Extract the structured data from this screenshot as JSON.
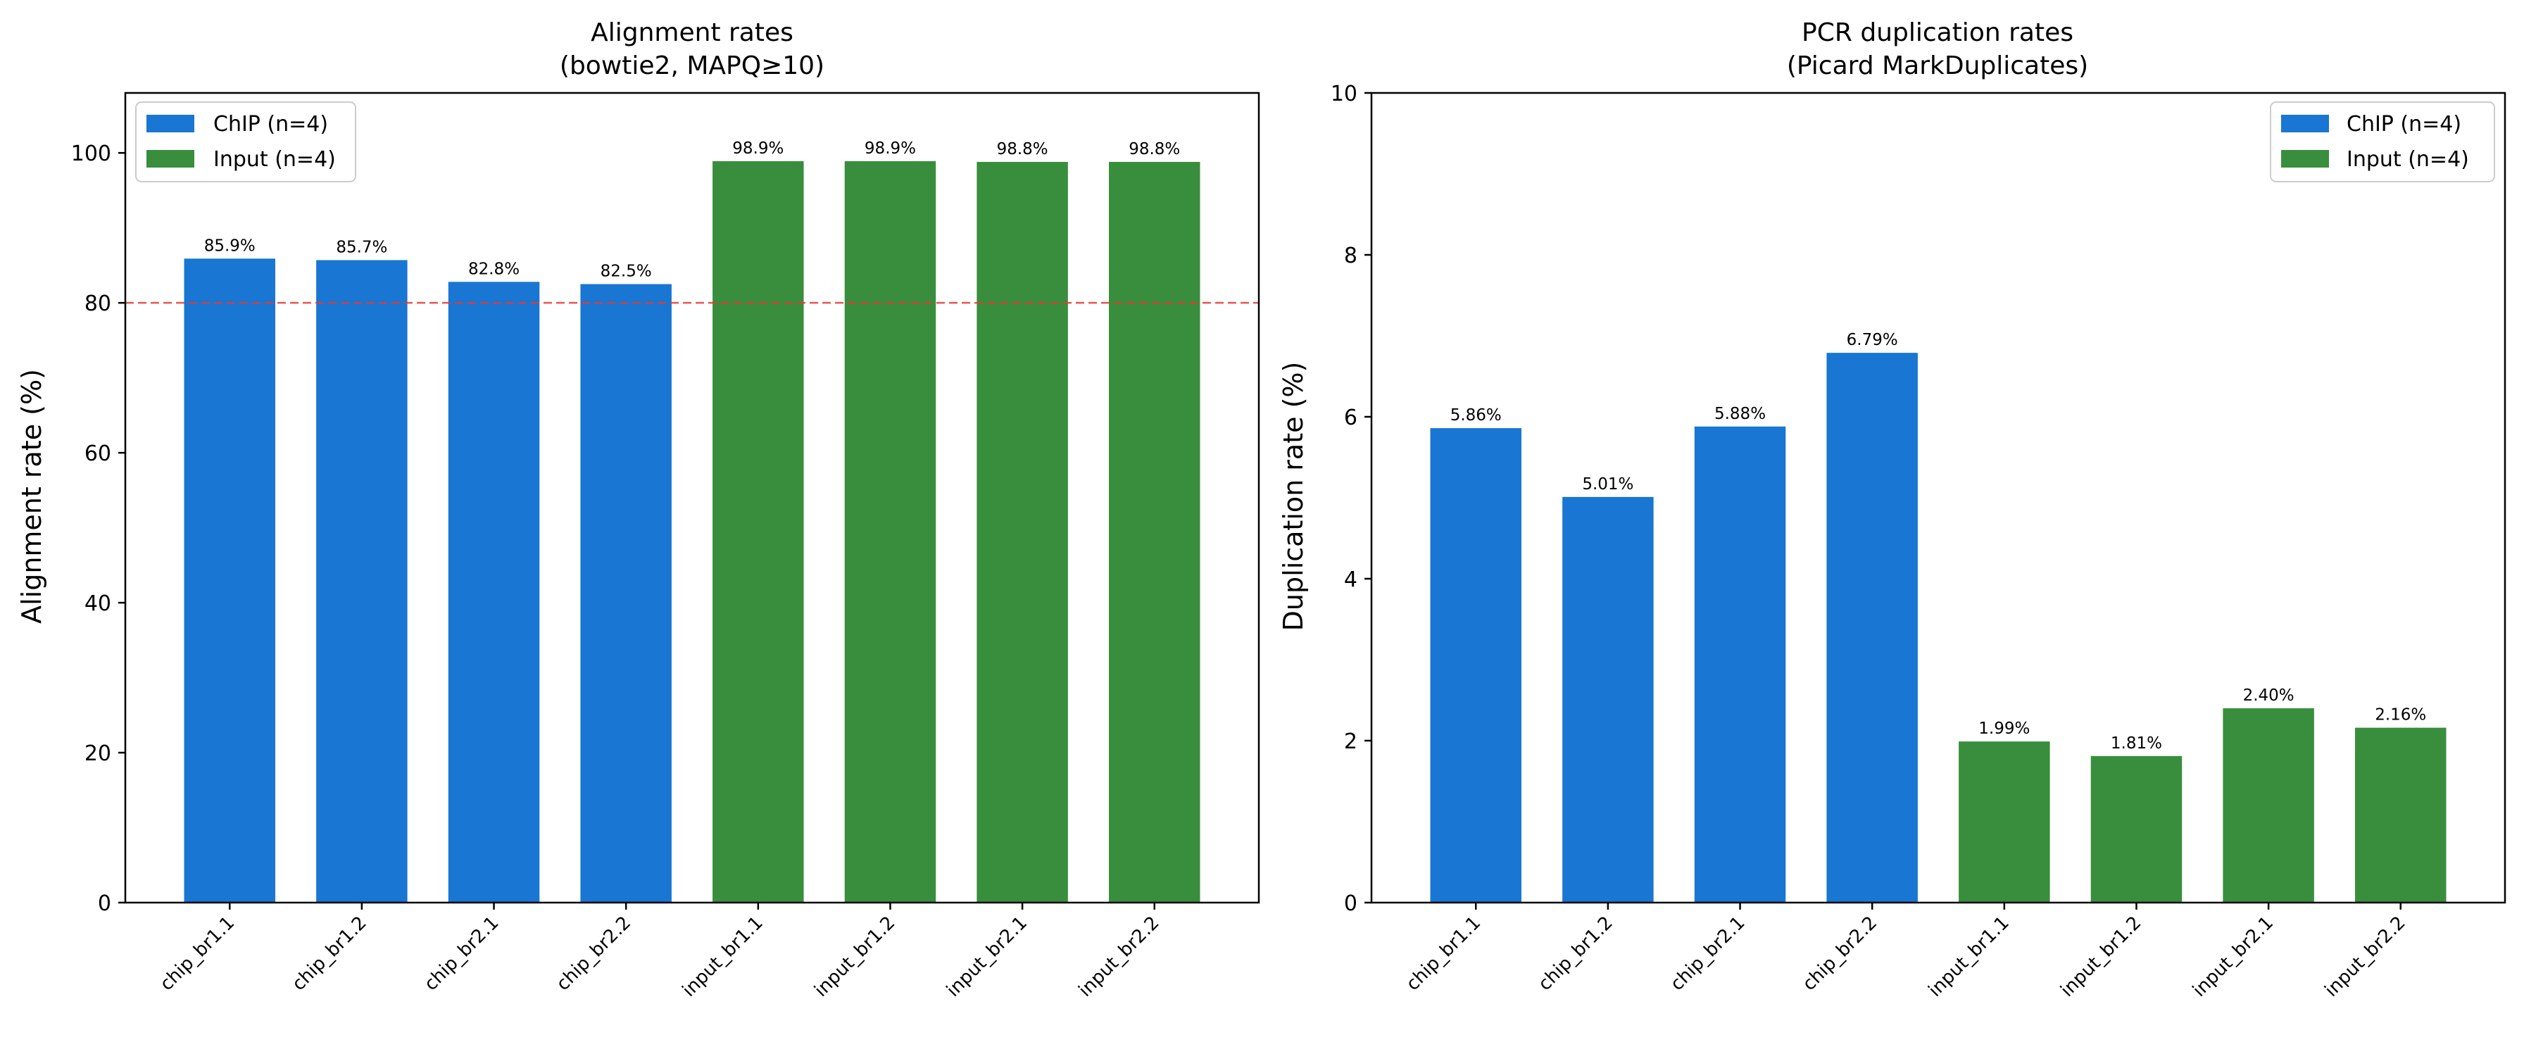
{
  "colors": {
    "chip": "#1976D2",
    "input": "#388E3C",
    "threshold": "#E53935"
  },
  "chart_data": [
    {
      "type": "bar",
      "title": "Alignment rates",
      "subtitle": "(bowtie2, MAPQ≥10)",
      "xlabel": "",
      "ylabel": "Alignment rate (%)",
      "ylim": [
        0,
        108
      ],
      "yticks": [
        0,
        20,
        40,
        60,
        80,
        100
      ],
      "categories": [
        "chip_br1.1",
        "chip_br1.2",
        "chip_br2.1",
        "chip_br2.2",
        "input_br1.1",
        "input_br1.2",
        "input_br2.1",
        "input_br2.2"
      ],
      "values": [
        85.9,
        85.7,
        82.8,
        82.5,
        98.9,
        98.9,
        98.8,
        98.8
      ],
      "value_labels": [
        "85.9%",
        "85.7%",
        "82.8%",
        "82.5%",
        "98.9%",
        "98.9%",
        "98.8%",
        "98.8%"
      ],
      "groups": [
        "chip",
        "chip",
        "chip",
        "chip",
        "input",
        "input",
        "input",
        "input"
      ],
      "legend": [
        {
          "label": "ChIP (n=4)",
          "group": "chip"
        },
        {
          "label": "Input (n=4)",
          "group": "input"
        }
      ],
      "legend_position": "top-left",
      "threshold": {
        "value": 80,
        "style": "dashed"
      },
      "grid": false
    },
    {
      "type": "bar",
      "title": "PCR duplication rates",
      "subtitle": "(Picard MarkDuplicates)",
      "xlabel": "",
      "ylabel": "Duplication rate (%)",
      "ylim": [
        0,
        10
      ],
      "yticks": [
        0,
        2,
        4,
        6,
        8,
        10
      ],
      "categories": [
        "chip_br1.1",
        "chip_br1.2",
        "chip_br2.1",
        "chip_br2.2",
        "input_br1.1",
        "input_br1.2",
        "input_br2.1",
        "input_br2.2"
      ],
      "values": [
        5.86,
        5.01,
        5.88,
        6.79,
        1.99,
        1.81,
        2.4,
        2.16
      ],
      "value_labels": [
        "5.86%",
        "5.01%",
        "5.88%",
        "6.79%",
        "1.99%",
        "1.81%",
        "2.40%",
        "2.16%"
      ],
      "groups": [
        "chip",
        "chip",
        "chip",
        "chip",
        "input",
        "input",
        "input",
        "input"
      ],
      "legend": [
        {
          "label": "ChIP (n=4)",
          "group": "chip"
        },
        {
          "label": "Input (n=4)",
          "group": "input"
        }
      ],
      "legend_position": "top-right",
      "grid": false
    }
  ]
}
